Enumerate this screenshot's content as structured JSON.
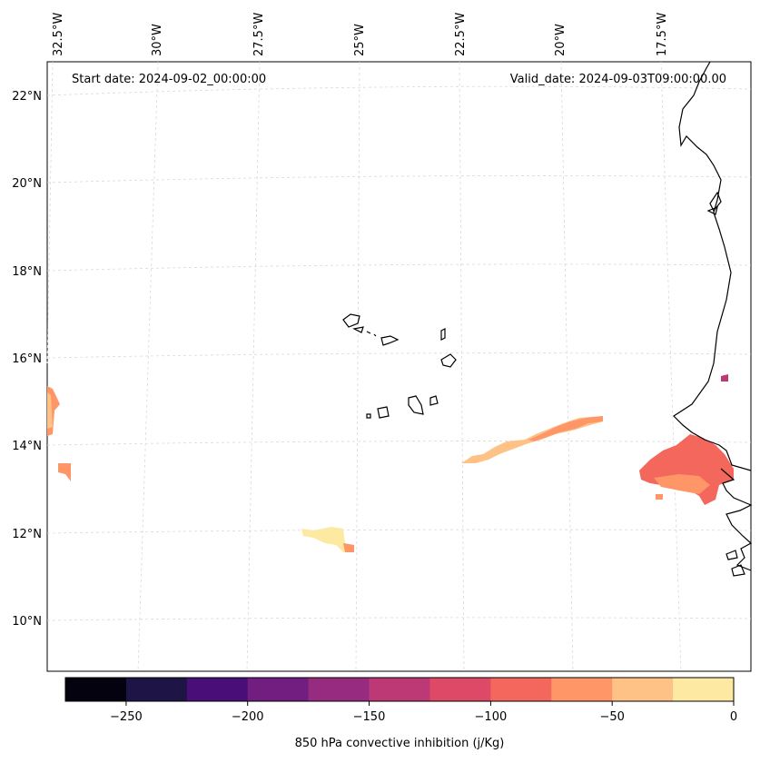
{
  "map": {
    "start_date": "Start date: 2024-09-02_00:00:00",
    "valid_date": "Valid_date: 2024-09-03T09:00:00.00",
    "lon_labels": [
      "32.5°W",
      "30°W",
      "27.5°W",
      "25°W",
      "22.5°W",
      "20°W",
      "17.5°W"
    ],
    "lat_labels": [
      "22°N",
      "20°N",
      "18°N",
      "16°N",
      "14°N",
      "12°N",
      "10°N"
    ],
    "colors": {
      "coastline": "#000000",
      "gridline": "#d9d9d9"
    }
  },
  "colorbar": {
    "label": "850 hPa convective inhibition (j/Kg)",
    "ticks": [
      "−250",
      "−200",
      "−150",
      "−100",
      "−50",
      "0"
    ],
    "bins": [
      {
        "from": -275,
        "to": -250,
        "color": "#03020e"
      },
      {
        "from": -250,
        "to": -225,
        "color": "#1e1446"
      },
      {
        "from": -225,
        "to": -200,
        "color": "#4a0e78"
      },
      {
        "from": -200,
        "to": -175,
        "color": "#721e81"
      },
      {
        "from": -175,
        "to": -150,
        "color": "#962b80"
      },
      {
        "from": -150,
        "to": -125,
        "color": "#bd3976"
      },
      {
        "from": -125,
        "to": -100,
        "color": "#de4968"
      },
      {
        "from": -100,
        "to": -75,
        "color": "#f4675c"
      },
      {
        "from": -75,
        "to": -50,
        "color": "#fe9668"
      },
      {
        "from": -50,
        "to": -25,
        "color": "#fec286"
      },
      {
        "from": -25,
        "to": 0,
        "color": "#fde9a2"
      }
    ]
  }
}
